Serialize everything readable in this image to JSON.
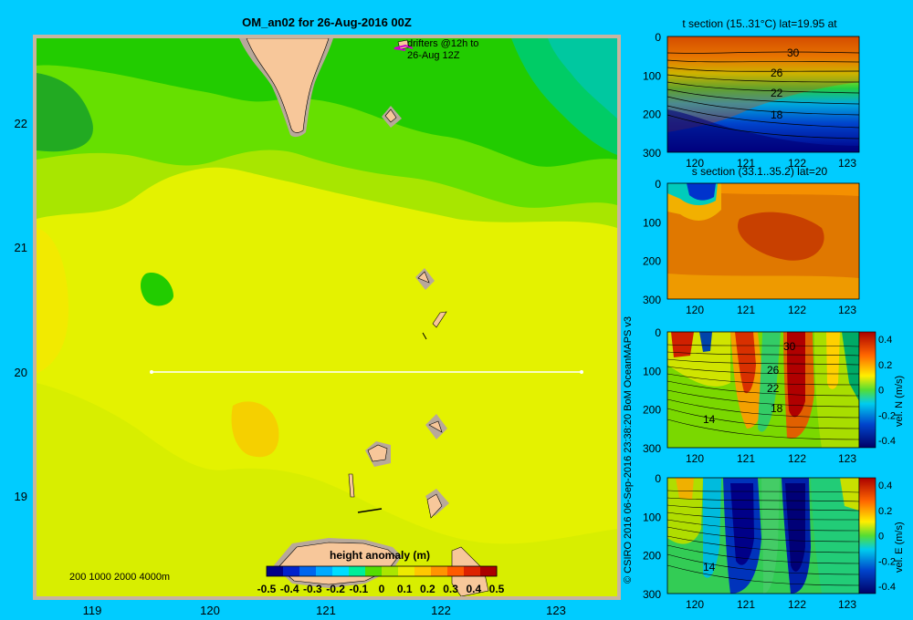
{
  "main_map": {
    "title": "OM_an02 for 26-Aug-2016 00Z",
    "drifter_note_line1": "drifters @12h to",
    "drifter_note_line2": "26-Aug 12Z",
    "depth_legend": "200  1000  2000  4000m",
    "colorbar_label": "height anomaly  (m)",
    "colorbar_ticks": [
      "-0.5",
      "-0.4",
      "-0.3",
      "-0.2",
      "-0.1",
      "0",
      "0.1",
      "0.2",
      "0.3",
      "0.4",
      "0.5"
    ],
    "x_ticks": [
      "119",
      "120",
      "121",
      "122",
      "123"
    ],
    "y_ticks": [
      "22",
      "21",
      "20",
      "19"
    ],
    "colors": {
      "land": "#f7c79a",
      "shelf": "#b8a89a",
      "frame": "#c8b4a0",
      "section_line": "#ffffff",
      "drifter": "#cc00cc"
    }
  },
  "credit": "© CSIRO 2016   06-Sep-2016 23:38:20 BoM OceanMAPS v3",
  "panels": [
    {
      "title": "t section (15..31°C) lat=19.95 at",
      "y_ticks": [
        "0",
        "100",
        "200",
        "300"
      ],
      "x_ticks": [
        "120",
        "121",
        "122",
        "123"
      ],
      "contour_labels": [
        "30",
        "26",
        "22",
        "18"
      ]
    },
    {
      "title": "s section (33.1..35.2) lat=20",
      "y_ticks": [
        "0",
        "100",
        "200",
        "300"
      ],
      "x_ticks": [
        "120",
        "121",
        "122",
        "123"
      ],
      "contour_labels": []
    },
    {
      "title": "",
      "y_ticks": [
        "0",
        "100",
        "200",
        "300"
      ],
      "x_ticks": [
        "120",
        "121",
        "122",
        "123"
      ],
      "contour_labels": [
        "30",
        "26",
        "22",
        "18",
        "14"
      ],
      "colorbar_ticks": [
        "0.4",
        "0.2",
        "0",
        "-0.2",
        "-0.4"
      ],
      "colorbar_label": "vel. N  (m/s)"
    },
    {
      "title": "",
      "y_ticks": [
        "0",
        "100",
        "200",
        "300"
      ],
      "x_ticks": [
        "120",
        "121",
        "122",
        "123"
      ],
      "contour_labels": [
        "14"
      ],
      "colorbar_ticks": [
        "0.4",
        "0.2",
        "0",
        "-0.2",
        "-0.4"
      ],
      "colorbar_label": "vel. E  (m/s)"
    }
  ],
  "chart_data": {
    "type": "heatmap",
    "title": "OM_an02 for 26-Aug-2016 00Z",
    "xlim": [
      118.5,
      123.5
    ],
    "ylim": [
      18.3,
      22.7
    ],
    "x_ticks": [
      119,
      120,
      121,
      122,
      123
    ],
    "y_ticks": [
      22,
      21,
      20,
      19
    ],
    "variable": "height anomaly (m)",
    "colorbar_range": [
      -0.5,
      0.5
    ],
    "section_line": {
      "lat": 20,
      "lon_start": 119.5,
      "lon_end": 123.2
    },
    "height_anomaly_regions": [
      {
        "region": "north-west",
        "approx_value": 0.0
      },
      {
        "region": "north-east",
        "approx_value": -0.1
      },
      {
        "region": "west (lon 119, lat 20.5)",
        "approx_value": 0.15
      },
      {
        "region": "central/south",
        "approx_value": 0.15
      },
      {
        "region": "south centre (lon 120.4, lat 19.6)",
        "approx_value": 0.3
      },
      {
        "region": "east (lon 122.5, lat 20.5)",
        "approx_value": 0.15
      }
    ],
    "section_panels": [
      {
        "variable": "temperature",
        "range": [
          15,
          31
        ],
        "units": "°C",
        "depth_range": [
          0,
          300
        ],
        "lon_range": [
          119.5,
          123.2
        ]
      },
      {
        "variable": "salinity",
        "range": [
          33.1,
          35.2
        ],
        "depth_range": [
          0,
          300
        ],
        "lon_range": [
          119.5,
          123.2
        ]
      },
      {
        "variable": "vel. N",
        "units": "m/s",
        "range": [
          -0.4,
          0.4
        ],
        "depth_range": [
          0,
          300
        ]
      },
      {
        "variable": "vel. E",
        "units": "m/s",
        "range": [
          -0.4,
          0.4
        ],
        "depth_range": [
          0,
          300
        ]
      }
    ]
  }
}
